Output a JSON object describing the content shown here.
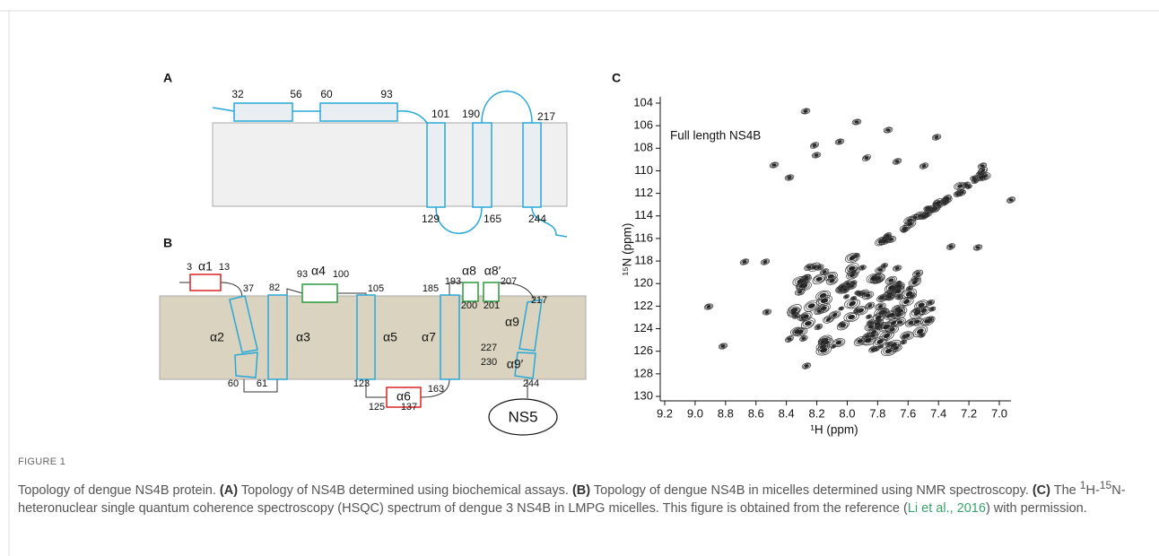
{
  "figure": {
    "label": "FIGURE 1",
    "caption": [
      "Topology of dengue NS4B protein. ",
      "(A)",
      " Topology of NS4B determined using biochemical assays. ",
      "(B)",
      " Topology of dengue NS4B in micelles determined using NMR spectroscopy. ",
      "(C)",
      " The ",
      "1",
      "H-",
      "15",
      "N- heteronuclear single quantum coherence spectroscopy (HSQC) spectrum of dengue 3 NS4B in LMPG micelles. This figure is obtained from the reference (",
      "Li et al., 2016",
      ") with permission."
    ]
  },
  "panel_a": {
    "label": "A",
    "labels": [
      "32",
      "56",
      "60",
      "93",
      "101",
      "190",
      "217",
      "129",
      "165",
      "244"
    ]
  },
  "panel_b": {
    "label": "B",
    "labels": [
      "3",
      "α1",
      "13",
      "37",
      "82",
      "93",
      "α4",
      "100",
      "105",
      "185",
      "193",
      "α8",
      "α8′",
      "207",
      "200",
      "201",
      "217",
      "α2",
      "α3",
      "α5",
      "α7",
      "α9",
      "227",
      "230",
      "α9′",
      "60",
      "61",
      "123",
      "163",
      "125",
      "α6",
      "137",
      "244",
      "NS5"
    ]
  },
  "panel_c": {
    "label": "C",
    "annotation": "Full length NS4B",
    "x_label": "¹H (ppm)",
    "y_label": "¹⁵N (ppm)",
    "xlim": [
      9.2,
      7.0
    ],
    "xticks": [
      9.2,
      {
        "value": 9,
        "label": "9.0"
      },
      8.8,
      8.6,
      8.4,
      8.2,
      {
        "value": 8,
        "label": "8.0"
      },
      7.8,
      7.6,
      7.4,
      7.2,
      {
        "value": 7,
        "label": "7.0"
      }
    ],
    "ylim": [
      104,
      130
    ],
    "yticks": [
      104,
      106,
      108,
      110,
      112,
      114,
      116,
      118,
      120,
      122,
      124,
      126,
      128,
      130
    ]
  }
}
